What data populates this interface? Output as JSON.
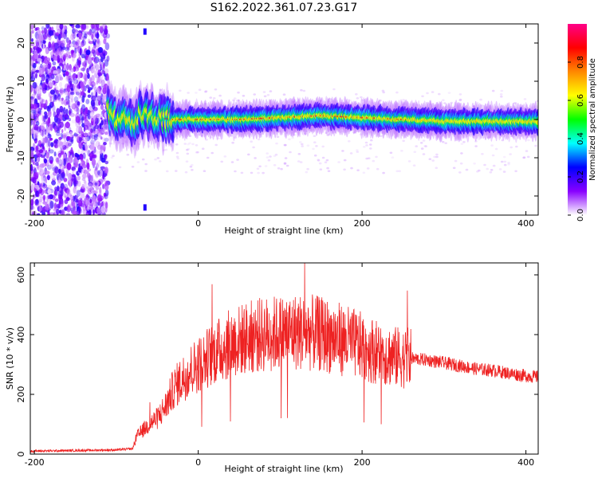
{
  "title": "S162.2022.361.07.23.G17",
  "colors": {
    "snr_line": "#ee2222",
    "axis": "#000000",
    "colormap": [
      "#ffffff",
      "#8800ff",
      "#0000ff",
      "#00ffff",
      "#00ff00",
      "#ffff00",
      "#ff8800",
      "#ff0000",
      "#ff0088"
    ]
  },
  "chart_data": [
    {
      "type": "heatmap",
      "xlabel": "Height of straight line (km)",
      "ylabel": "Frequency (Hz)",
      "xlim": [
        -205,
        415
      ],
      "ylim": [
        -25,
        25
      ],
      "xticks": [
        -200,
        0,
        200,
        400
      ],
      "yticks": [
        -20,
        -10,
        0,
        10,
        20
      ],
      "colorbar": {
        "label": "Normalized spectral amplitude",
        "range": [
          0,
          1
        ],
        "ticks": [
          "0.0",
          "0.2",
          "0.4",
          "0.6",
          "0.8"
        ],
        "tick_values": [
          0.0,
          0.2,
          0.4,
          0.6,
          0.8
        ]
      },
      "features": {
        "noise_region_x": [
          -205,
          -110
        ],
        "ridge_frequency_hz": [
          [
            -110,
            2.5
          ],
          [
            -100,
            -0.5
          ],
          [
            -90,
            1.5
          ],
          [
            -80,
            -1
          ],
          [
            -70,
            1.5
          ],
          [
            -50,
            0.5
          ],
          [
            -30,
            0
          ],
          [
            0,
            0
          ],
          [
            50,
            0
          ],
          [
            100,
            0.5
          ],
          [
            150,
            1
          ],
          [
            200,
            0.5
          ],
          [
            250,
            0
          ],
          [
            300,
            -0.5
          ],
          [
            350,
            -0.5
          ],
          [
            415,
            -0.5
          ]
        ]
      }
    },
    {
      "type": "line",
      "xlabel": "Height of straight line (km)",
      "ylabel": "SNR (10 * v/v)",
      "xlim": [
        -205,
        415
      ],
      "ylim": [
        0,
        640
      ],
      "xticks": [
        -200,
        0,
        200,
        400
      ],
      "yticks": [
        0,
        200,
        400,
        600
      ],
      "series": [
        {
          "x": [
            -205,
            -150,
            -100,
            -80,
            -75,
            -60,
            -50,
            -40,
            -30,
            -20,
            -10,
            0,
            20,
            40,
            60,
            80,
            100,
            120,
            140,
            160,
            180,
            200,
            220,
            240,
            260,
            280,
            300,
            320,
            340,
            360,
            380,
            400,
            415
          ],
          "y": [
            10,
            12,
            14,
            18,
            60,
            100,
            120,
            160,
            220,
            250,
            280,
            300,
            340,
            370,
            390,
            400,
            405,
            410,
            405,
            395,
            380,
            360,
            340,
            325,
            320,
            315,
            305,
            295,
            285,
            280,
            270,
            262,
            258
          ]
        }
      ]
    }
  ]
}
